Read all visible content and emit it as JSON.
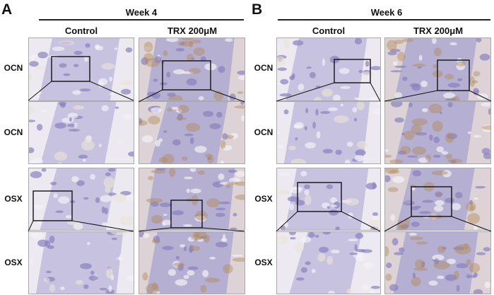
{
  "panels": [
    {
      "letter": "A",
      "week": "Week 4",
      "columns": [
        "Control",
        "TRX 200μM"
      ],
      "rows": [
        "OCN",
        "OCN",
        "OSX",
        "OSX"
      ]
    },
    {
      "letter": "B",
      "week": "Week 6",
      "columns": [
        "Control",
        "TRX 200μM"
      ],
      "rows": [
        "OCN",
        "OCN",
        "OSX",
        "OSX"
      ]
    }
  ],
  "colors": {
    "tissue_purple": "#a7a3cf",
    "bone_violet": "#8a82bd",
    "stain_brown": "#b48a58",
    "background_cream": "#ece5da"
  }
}
